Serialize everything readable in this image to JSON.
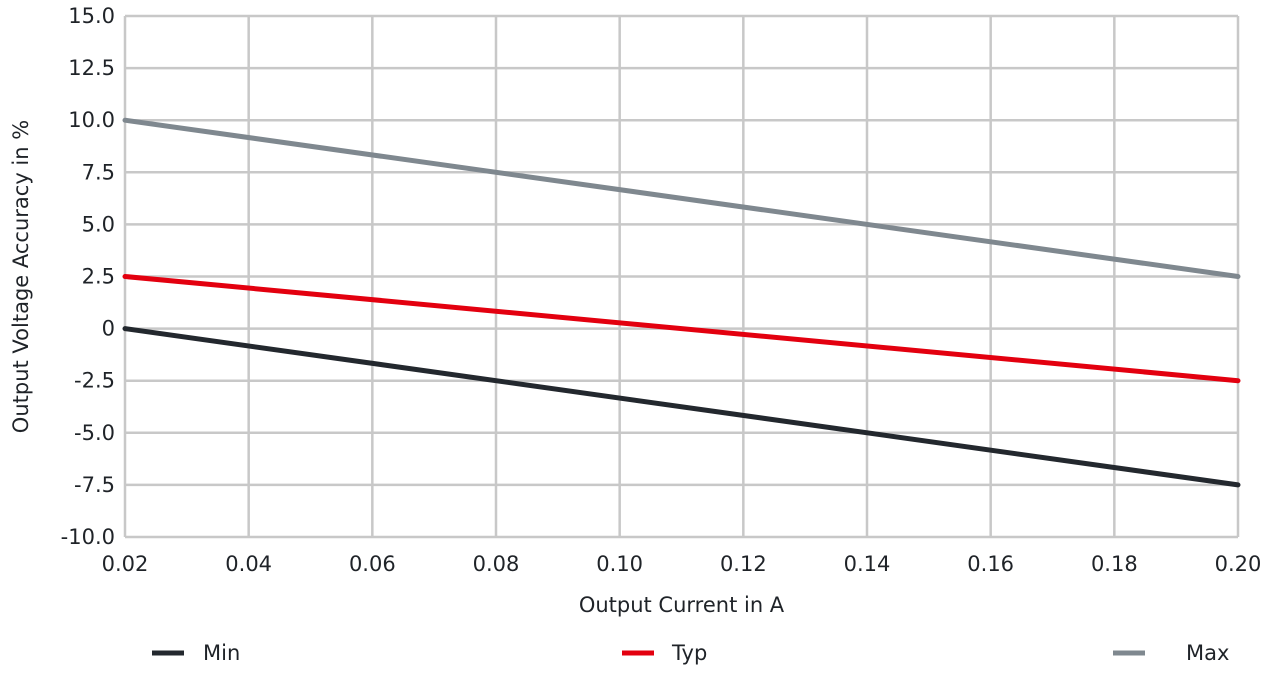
{
  "chart_data": {
    "type": "line",
    "title": "",
    "xlabel": "Output Current in A",
    "ylabel": "Output Voltage Accuracy in %",
    "xlim": [
      0.02,
      0.2
    ],
    "ylim": [
      -10.0,
      15.0
    ],
    "grid": true,
    "legend_position": "bottom",
    "x_ticks": [
      "0.02",
      "0.04",
      "0.06",
      "0.08",
      "0.10",
      "0.12",
      "0.14",
      "0.16",
      "0.18",
      "0.20"
    ],
    "y_ticks": [
      "15.0",
      "12.5",
      "10.0",
      "7.5",
      "5.0",
      "2.5",
      "0",
      "-2.5",
      "-5.0",
      "-7.5",
      "-10.0"
    ],
    "series": [
      {
        "name": "Min",
        "color": "#23282e",
        "x": [
          0.02,
          0.2
        ],
        "y": [
          0.0,
          -7.5
        ]
      },
      {
        "name": "Typ",
        "color": "#e3000f",
        "x": [
          0.02,
          0.2
        ],
        "y": [
          2.5,
          -2.5
        ]
      },
      {
        "name": "Max",
        "color": "#7f888f",
        "x": [
          0.02,
          0.2
        ],
        "y": [
          10.0,
          2.5
        ]
      }
    ],
    "grid_color": "#c8c8c8"
  }
}
